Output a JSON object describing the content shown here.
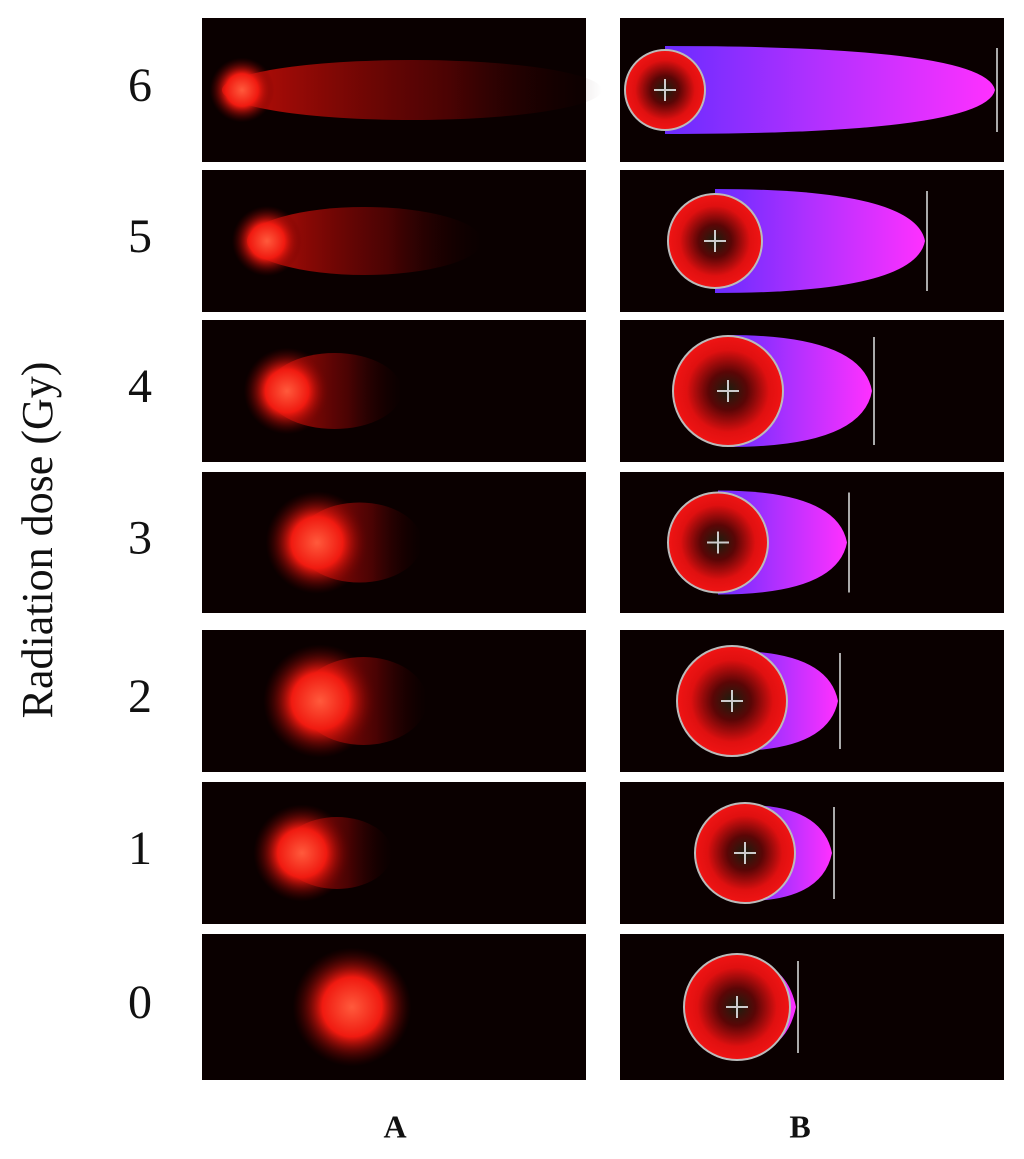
{
  "y_axis_label": "Radiation dose (Gy)",
  "rows": [
    "6",
    "5",
    "4",
    "3",
    "2",
    "1",
    "0"
  ],
  "columns": [
    "A",
    "B"
  ]
}
